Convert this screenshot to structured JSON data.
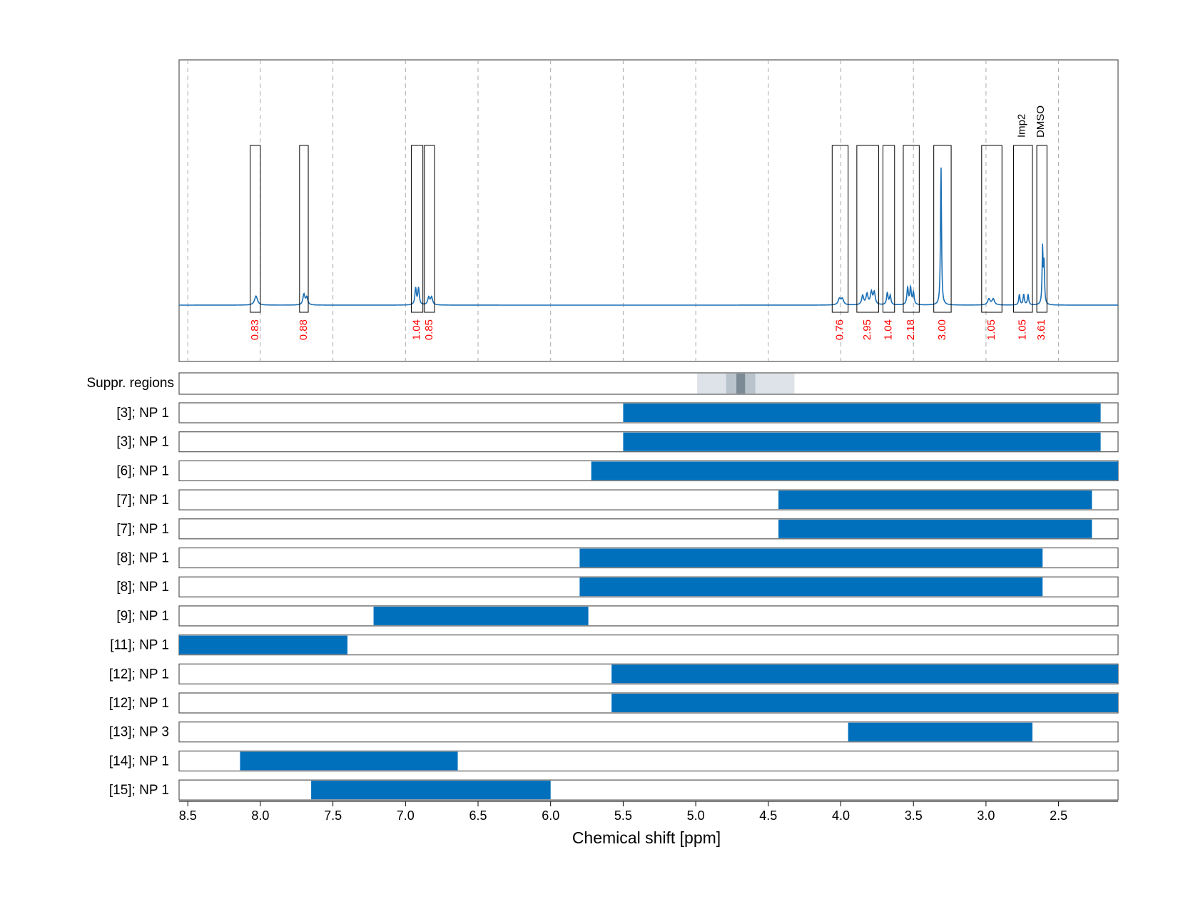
{
  "chart_data": {
    "type": "spectrum_with_ranges",
    "xlabel": "Chemical shift [ppm]",
    "x_reversed": true,
    "xlim": [
      8.56,
      2.09
    ],
    "x_ticks": [
      "8.5",
      "8.0",
      "7.5",
      "7.0",
      "6.5",
      "6.0",
      "5.5",
      "5.0",
      "4.5",
      "4.0",
      "3.5",
      "3.0",
      "2.5"
    ],
    "x_tick_values": [
      8.5,
      8.0,
      7.5,
      7.0,
      6.5,
      6.0,
      5.5,
      5.0,
      4.5,
      4.0,
      3.5,
      3.0,
      2.5
    ],
    "grid": true,
    "colors": {
      "spectrum": "#1a6fb5",
      "bar": "#0070bc",
      "integral_text": "#ff0000",
      "frame": "#555555"
    },
    "integrals": [
      {
        "from": 8.07,
        "to": 8.0,
        "label": "0.83"
      },
      {
        "from": 7.73,
        "to": 7.67,
        "label": "0.88"
      },
      {
        "from": 6.96,
        "to": 6.88,
        "label": "1.04"
      },
      {
        "from": 6.87,
        "to": 6.8,
        "label": "0.85"
      },
      {
        "from": 4.06,
        "to": 3.95,
        "label": "0.76"
      },
      {
        "from": 3.89,
        "to": 3.74,
        "label": "2.95"
      },
      {
        "from": 3.71,
        "to": 3.63,
        "label": "1.04"
      },
      {
        "from": 3.57,
        "to": 3.46,
        "label": "2.18"
      },
      {
        "from": 3.36,
        "to": 3.24,
        "label": "3.00"
      },
      {
        "from": 3.03,
        "to": 2.89,
        "label": "1.05"
      },
      {
        "from": 2.81,
        "to": 2.68,
        "label": "1.05"
      },
      {
        "from": 2.65,
        "to": 2.58,
        "label": "3.61"
      }
    ],
    "annotations": [
      {
        "x": 2.75,
        "text": "Imp2"
      },
      {
        "x": 2.62,
        "text": "DMSO"
      }
    ],
    "peaks": [
      {
        "x": 8.03,
        "h": 0.06,
        "w": 0.012
      },
      {
        "x": 7.7,
        "h": 0.07,
        "w": 0.008
      },
      {
        "x": 7.68,
        "h": 0.05,
        "w": 0.008
      },
      {
        "x": 6.93,
        "h": 0.11,
        "w": 0.006
      },
      {
        "x": 6.91,
        "h": 0.11,
        "w": 0.006
      },
      {
        "x": 6.84,
        "h": 0.05,
        "w": 0.008
      },
      {
        "x": 6.82,
        "h": 0.05,
        "w": 0.008
      },
      {
        "x": 4.01,
        "h": 0.04,
        "w": 0.01
      },
      {
        "x": 3.99,
        "h": 0.04,
        "w": 0.01
      },
      {
        "x": 3.85,
        "h": 0.06,
        "w": 0.008
      },
      {
        "x": 3.82,
        "h": 0.07,
        "w": 0.008
      },
      {
        "x": 3.79,
        "h": 0.08,
        "w": 0.008
      },
      {
        "x": 3.77,
        "h": 0.08,
        "w": 0.008
      },
      {
        "x": 3.68,
        "h": 0.08,
        "w": 0.006
      },
      {
        "x": 3.66,
        "h": 0.06,
        "w": 0.006
      },
      {
        "x": 3.54,
        "h": 0.11,
        "w": 0.006
      },
      {
        "x": 3.52,
        "h": 0.11,
        "w": 0.006
      },
      {
        "x": 3.5,
        "h": 0.08,
        "w": 0.006
      },
      {
        "x": 3.31,
        "h": 0.93,
        "w": 0.004
      },
      {
        "x": 2.98,
        "h": 0.04,
        "w": 0.01
      },
      {
        "x": 2.95,
        "h": 0.04,
        "w": 0.01
      },
      {
        "x": 2.77,
        "h": 0.07,
        "w": 0.005
      },
      {
        "x": 2.74,
        "h": 0.07,
        "w": 0.005
      },
      {
        "x": 2.71,
        "h": 0.07,
        "w": 0.005
      },
      {
        "x": 2.61,
        "h": 0.37,
        "w": 0.004
      },
      {
        "x": 2.6,
        "h": 0.26,
        "w": 0.004
      }
    ],
    "suppression_regions": [
      {
        "from": 4.99,
        "to": 4.32,
        "level": 1
      },
      {
        "from": 4.79,
        "to": 4.59,
        "level": 2
      },
      {
        "from": 4.72,
        "to": 4.66,
        "level": 3
      }
    ],
    "suppression_label": "Suppr. regions",
    "ranges": [
      {
        "label": "[3]; NP 1",
        "from": 5.5,
        "to": 2.21
      },
      {
        "label": "[3]; NP 1",
        "from": 5.5,
        "to": 2.21
      },
      {
        "label": "[6]; NP 1",
        "from": 5.72,
        "to": 2.09
      },
      {
        "label": "[7]; NP 1",
        "from": 4.43,
        "to": 2.27
      },
      {
        "label": "[7]; NP 1",
        "from": 4.43,
        "to": 2.27
      },
      {
        "label": "[8]; NP 1",
        "from": 5.8,
        "to": 2.61
      },
      {
        "label": "[8]; NP 1",
        "from": 5.8,
        "to": 2.61
      },
      {
        "label": "[9]; NP 1",
        "from": 7.22,
        "to": 5.74
      },
      {
        "label": "[11]; NP 1",
        "from": 8.56,
        "to": 7.4
      },
      {
        "label": "[12]; NP 1",
        "from": 5.58,
        "to": 2.09
      },
      {
        "label": "[12]; NP 1",
        "from": 5.58,
        "to": 2.09
      },
      {
        "label": "[13]; NP 3",
        "from": 3.95,
        "to": 2.68
      },
      {
        "label": "[14]; NP 1",
        "from": 8.14,
        "to": 6.64
      },
      {
        "label": "[15]; NP 1",
        "from": 7.65,
        "to": 6.0
      }
    ]
  }
}
